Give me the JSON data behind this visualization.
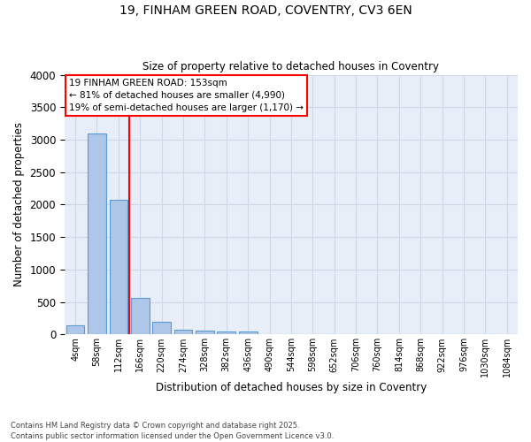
{
  "title": "19, FINHAM GREEN ROAD, COVENTRY, CV3 6EN",
  "subtitle": "Size of property relative to detached houses in Coventry",
  "xlabel": "Distribution of detached houses by size in Coventry",
  "ylabel": "Number of detached properties",
  "footer_line1": "Contains HM Land Registry data © Crown copyright and database right 2025.",
  "footer_line2": "Contains public sector information licensed under the Open Government Licence v3.0.",
  "categories": [
    "4sqm",
    "58sqm",
    "112sqm",
    "166sqm",
    "220sqm",
    "274sqm",
    "328sqm",
    "382sqm",
    "436sqm",
    "490sqm",
    "544sqm",
    "598sqm",
    "652sqm",
    "706sqm",
    "760sqm",
    "814sqm",
    "868sqm",
    "922sqm",
    "976sqm",
    "1030sqm",
    "1084sqm"
  ],
  "bar_values": [
    140,
    3100,
    2080,
    570,
    200,
    70,
    55,
    45,
    50,
    0,
    0,
    0,
    0,
    0,
    0,
    0,
    0,
    0,
    0,
    0,
    0
  ],
  "bar_color": "#aec6e8",
  "bar_edge_color": "#5b9bd5",
  "grid_color": "#d0d8e8",
  "background_color": "#e8eef8",
  "vline_color": "red",
  "annotation_text": "19 FINHAM GREEN ROAD: 153sqm\n← 81% of detached houses are smaller (4,990)\n19% of semi-detached houses are larger (1,170) →",
  "annotation_box_color": "red",
  "ylim": [
    0,
    4000
  ],
  "yticks": [
    0,
    500,
    1000,
    1500,
    2000,
    2500,
    3000,
    3500,
    4000
  ]
}
